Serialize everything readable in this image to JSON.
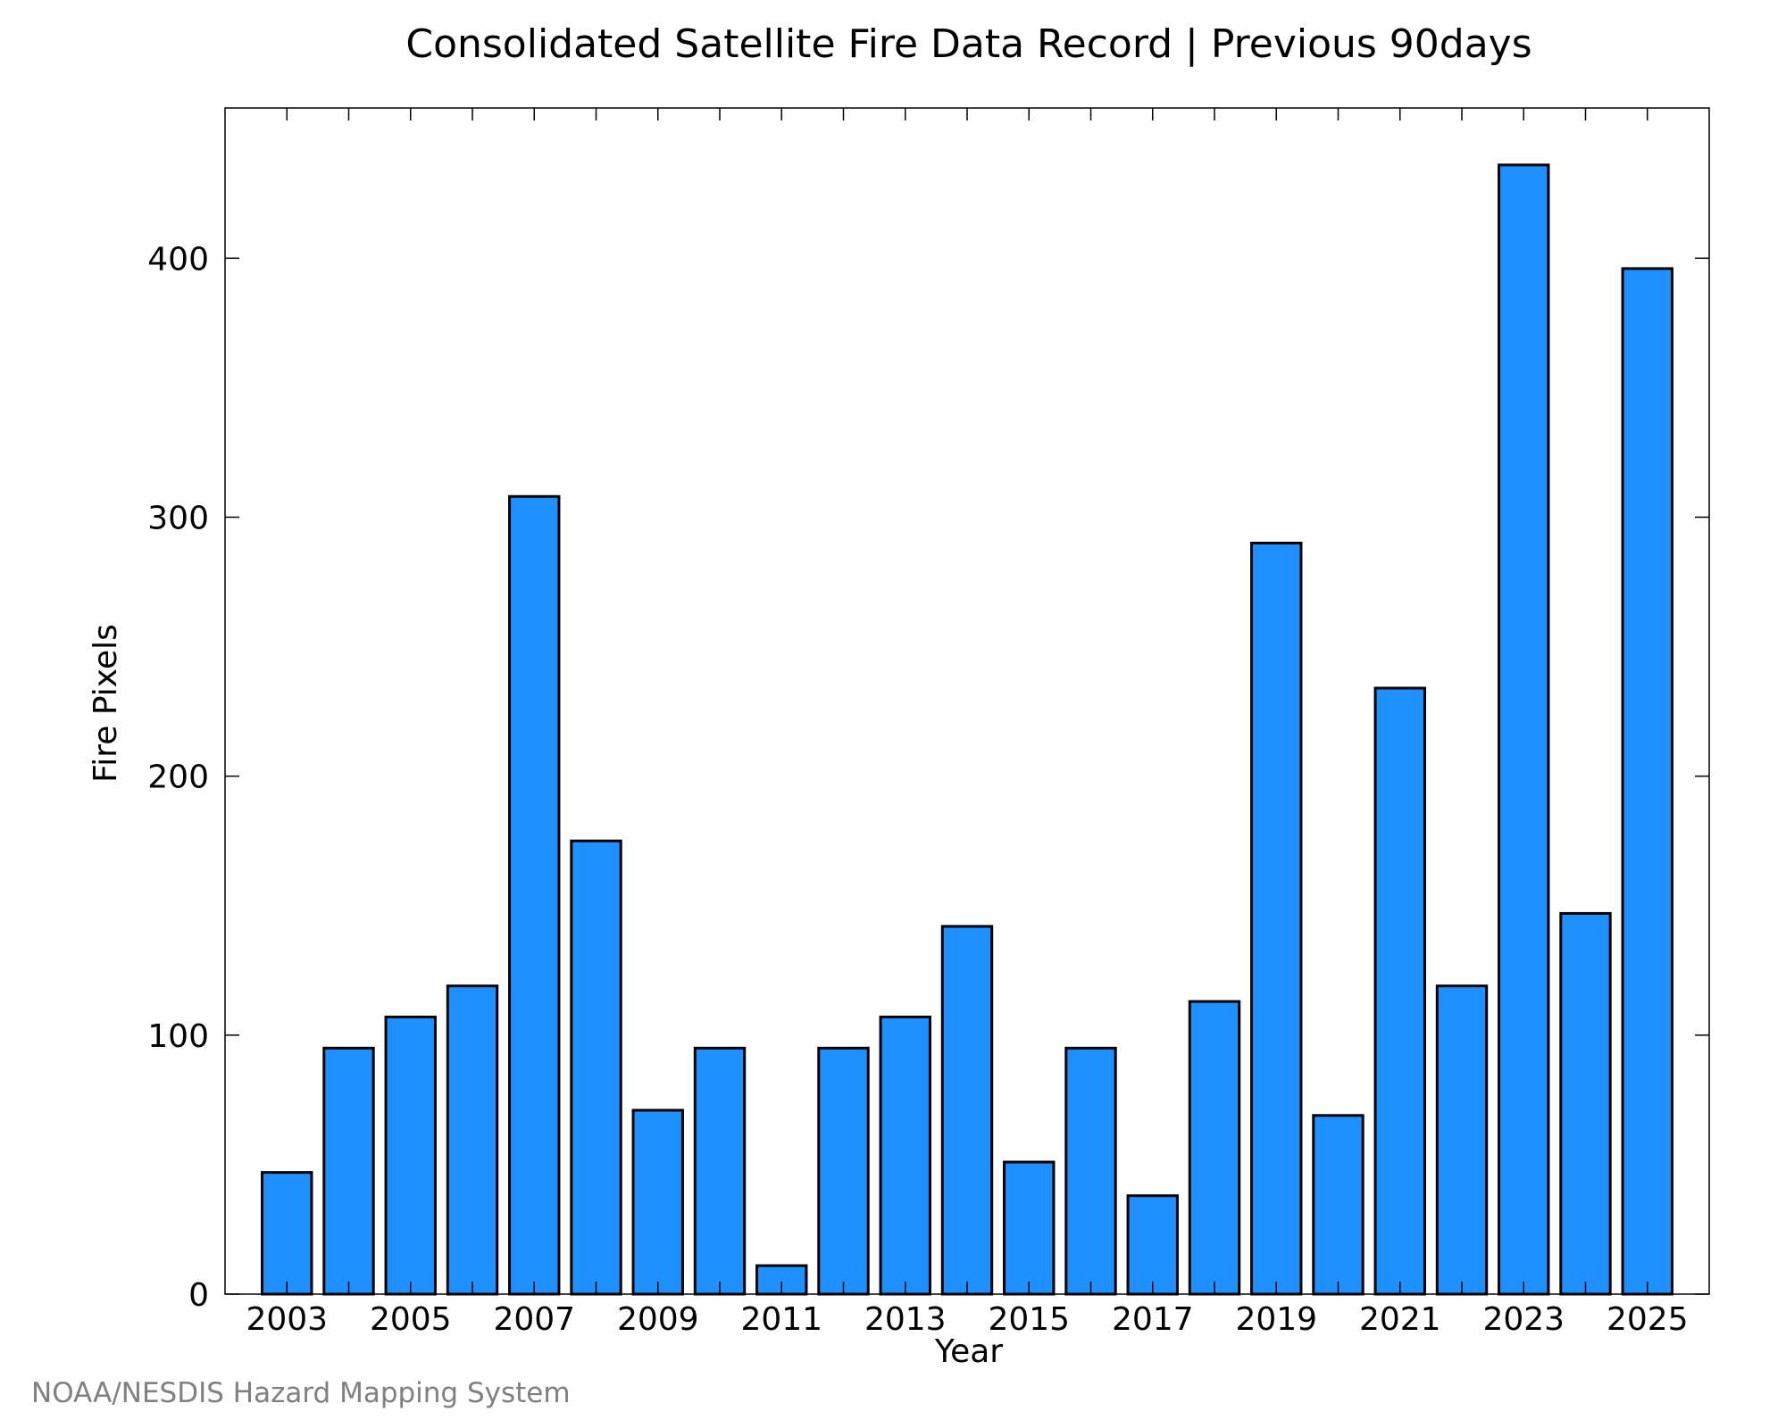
{
  "chart_data": {
    "type": "bar",
    "title": "Consolidated Satellite Fire Data Record | Previous 90days",
    "xlabel": "Year",
    "ylabel": "Fire Pixels",
    "categories": [
      "2003",
      "2004",
      "2005",
      "2006",
      "2007",
      "2008",
      "2009",
      "2010",
      "2011",
      "2012",
      "2013",
      "2014",
      "2015",
      "2016",
      "2017",
      "2018",
      "2019",
      "2020",
      "2021",
      "2022",
      "2023",
      "2024",
      "2025"
    ],
    "values": [
      47,
      95,
      107,
      119,
      308,
      175,
      71,
      95,
      11,
      95,
      107,
      142,
      51,
      95,
      38,
      113,
      290,
      69,
      234,
      119,
      436,
      147,
      396
    ],
    "x_tick_labels": [
      "2003",
      "2005",
      "2007",
      "2009",
      "2011",
      "2013",
      "2015",
      "2017",
      "2019",
      "2021",
      "2023",
      "2025"
    ],
    "y_ticks": [
      0,
      100,
      200,
      300,
      400
    ],
    "ylim": [
      0,
      458
    ],
    "grid": false,
    "bar_color": "#1E90FF",
    "bar_edge_color": "#000000"
  },
  "credit": "NOAA/NESDIS Hazard Mapping System"
}
